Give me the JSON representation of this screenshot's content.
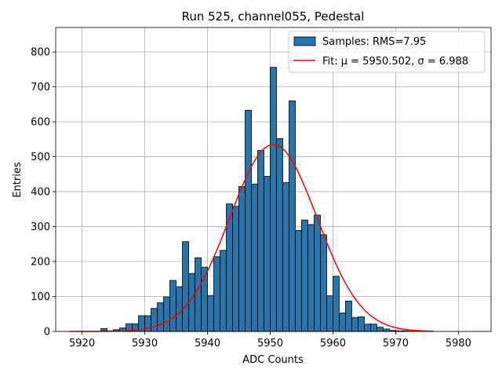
{
  "chart_data": {
    "type": "bar",
    "title": "Run 525, channel055, Pedestal",
    "xlabel": "ADC Counts",
    "ylabel": "Entries",
    "xlim": [
      5915.8,
      5985.2
    ],
    "ylim": [
      0,
      870
    ],
    "xticks": [
      5920,
      5930,
      5940,
      5950,
      5960,
      5970,
      5980
    ],
    "yticks": [
      0,
      100,
      200,
      300,
      400,
      500,
      600,
      700,
      800
    ],
    "grid": true,
    "legend_position": "top-right",
    "bin_start": 5918,
    "bin_width": 1,
    "series": [
      {
        "name": "Samples: RMS=7.95",
        "kind": "histogram",
        "color": "#1f77b4",
        "edgecolor": "#000000",
        "values": [
          0,
          0,
          0,
          0,
          0,
          8,
          2,
          5,
          10,
          22,
          22,
          45,
          45,
          66,
          82,
          99,
          146,
          128,
          257,
          166,
          211,
          184,
          103,
          214,
          232,
          365,
          358,
          415,
          633,
          422,
          518,
          444,
          756,
          552,
          426,
          660,
          289,
          319,
          306,
          333,
          277,
          102,
          158,
          53,
          87,
          40,
          42,
          21,
          21,
          12,
          7,
          3,
          2,
          2,
          1,
          1,
          1,
          1
        ]
      },
      {
        "name": "Fit: μ = 5950.502, σ = 6.988",
        "kind": "line",
        "color": "#ff0000",
        "mu": 5950.502,
        "sigma": 6.988,
        "amplitude": 535,
        "x_range": [
          5918,
          5976
        ]
      }
    ]
  }
}
